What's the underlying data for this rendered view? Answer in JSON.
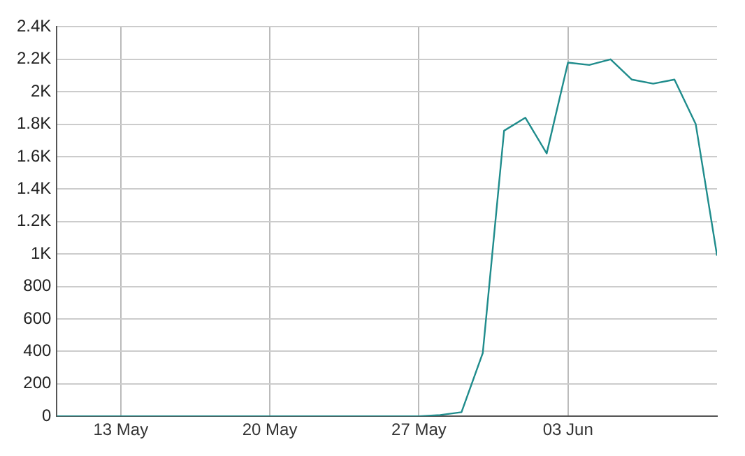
{
  "chart_data": {
    "type": "line",
    "x": [
      "--05-10",
      "--05-11",
      "--05-12",
      "--05-13",
      "--05-14",
      "--05-15",
      "--05-16",
      "--05-17",
      "--05-18",
      "--05-19",
      "--05-20",
      "--05-21",
      "--05-22",
      "--05-23",
      "--05-24",
      "--05-25",
      "--05-26",
      "--05-27",
      "--05-28",
      "--05-29",
      "--05-30",
      "--05-31",
      "--06-01",
      "--06-02",
      "--06-03",
      "--06-04",
      "--06-05",
      "--06-06",
      "--06-07",
      "--06-08",
      "--06-09",
      "--06-10"
    ],
    "series": [
      {
        "color": "#1f8c8c",
        "values": [
          0,
          0,
          0,
          0,
          0,
          0,
          0,
          0,
          0,
          0,
          0,
          0,
          0,
          0,
          0,
          0,
          0,
          0,
          8,
          25,
          390,
          1760,
          1840,
          1620,
          2180,
          2165,
          2200,
          2075,
          2050,
          2075,
          1800,
          990
        ]
      }
    ],
    "xlim": [
      "--05-10",
      "--06-10"
    ],
    "xticks": [
      {
        "value": "--05-13",
        "label": "13 May"
      },
      {
        "value": "--05-20",
        "label": "20 May"
      },
      {
        "value": "--05-27",
        "label": "27 May"
      },
      {
        "value": "--06-03",
        "label": "03 Jun"
      }
    ],
    "ylim": [
      0,
      2400
    ],
    "yticks": [
      0,
      200,
      400,
      600,
      800,
      {
        "value": 1000,
        "label": "1K"
      },
      {
        "value": 1200,
        "label": "1.2K"
      },
      {
        "value": 1400,
        "label": "1.4K"
      },
      {
        "value": 1600,
        "label": "1.6K"
      },
      {
        "value": 1800,
        "label": "1.8K"
      },
      {
        "value": 2000,
        "label": "2K"
      },
      {
        "value": 2200,
        "label": "2.2K"
      },
      {
        "value": 2400,
        "label": "2.4K"
      }
    ],
    "grid": true,
    "legend": false,
    "marker": "none",
    "line_style": "solid"
  }
}
